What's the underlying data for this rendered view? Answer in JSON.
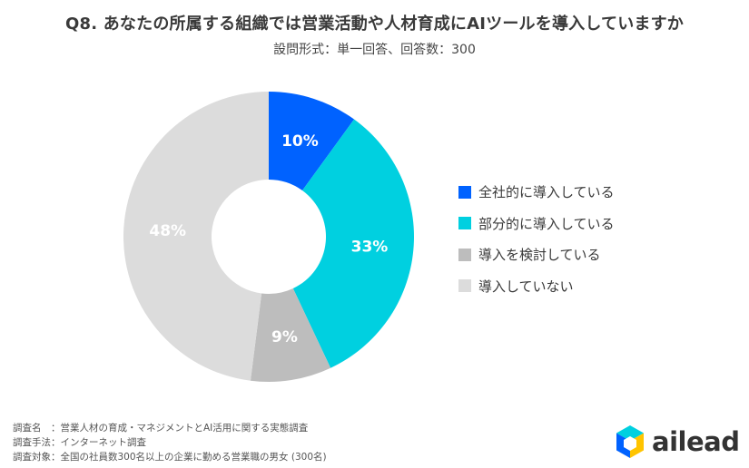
{
  "title": "Q8. あなたの所属する組織では営業活動や人材育成にAIツールを導入していますか",
  "subtitle": "設問形式：単一回答、回答数：300",
  "chart_data": {
    "type": "pie",
    "donut": true,
    "categories": [
      "全社的に導入している",
      "部分的に導入している",
      "導入を検討している",
      "導入していない"
    ],
    "values": [
      10,
      33,
      9,
      48
    ],
    "value_labels": [
      "10%",
      "33%",
      "9%",
      "48%"
    ],
    "colors": [
      "#0062ff",
      "#00d0e0",
      "#bdbdbd",
      "#dcdcdc"
    ],
    "legend_position": "right"
  },
  "footer": {
    "survey_name": "調査名　：営業人材の育成・マネジメントとAI活用に関する実態調査",
    "method": "調査手法：インターネット調査",
    "target": "調査対象：全国の社員数300名以上の企業に勤める営業職の男女 (300名)"
  },
  "logo": {
    "text": "ailead",
    "colors": {
      "top": "#00d0e0",
      "left": "#0062ff",
      "right": "#ffc400"
    }
  }
}
